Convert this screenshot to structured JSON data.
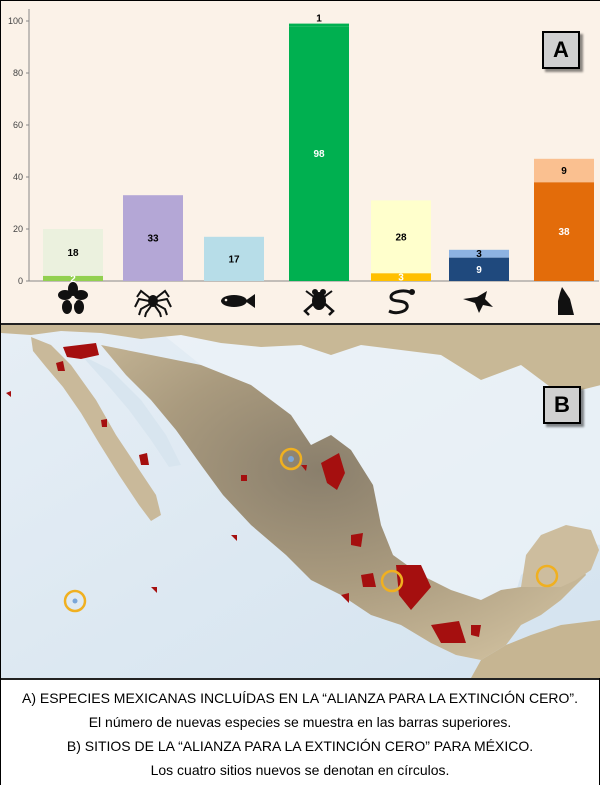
{
  "panels": {
    "a_label": "A",
    "b_label": "B"
  },
  "chart_data": {
    "type": "bar",
    "stacked": true,
    "categories": [
      "plant-icon",
      "spider-icon",
      "fish-icon",
      "frog-icon",
      "snake-icon",
      "bird-icon",
      "wolf-icon"
    ],
    "ylim": [
      0,
      100
    ],
    "yticks": [
      0,
      20,
      40,
      60,
      80,
      100
    ],
    "grid": false,
    "series": [
      {
        "values": [
          2,
          33,
          17,
          98,
          3,
          9,
          38
        ],
        "labels": [
          "2",
          "33",
          "17",
          "98",
          "3",
          "9",
          "38"
        ],
        "colors": [
          "#92d050",
          "#b4a7d6",
          "#b7dde8",
          "#00b050",
          "#ffc000",
          "#1f497d",
          "#e36c0a"
        ],
        "label_colors": [
          "#ffffff",
          "#000000",
          "#000000",
          "#ffffff",
          "#ffffff",
          "#ffffff",
          "#ffffff"
        ]
      },
      {
        "values": [
          18,
          0,
          0,
          1,
          28,
          3,
          9
        ],
        "labels": [
          "18",
          "",
          "",
          "1",
          "28",
          "3",
          "9"
        ],
        "colors": [
          "#ebf1de",
          "#b4a7d6",
          "#b7dde8",
          "#00b050",
          "#ffffcc",
          "#8db3e2",
          "#fac090"
        ],
        "label_colors": [
          "#000000",
          "#000000",
          "#000000",
          "#000000",
          "#000000",
          "#000000",
          "#000000"
        ]
      }
    ]
  },
  "caption": {
    "line1": "A) ESPECIES MEXICANAS INCLUÍDAS EN LA “ALIANZA PARA LA EXTINCIÓN CERO”.",
    "line2": "El número de nuevas especies se muestra en las barras superiores.",
    "line3": "B) SITIOS DE LA “ALIANZA PARA LA EXTINCIÓN CERO” PARA MÉXICO.",
    "line4": "Los cuatro sitios nuevos se denotan en círculos."
  },
  "colors": {
    "chart_bg": "#fbf2e8",
    "ocean": "#dfe9f2",
    "land": "#c9b99a",
    "sites": "#a50f0f",
    "new_site_circle": "#f0b020"
  }
}
